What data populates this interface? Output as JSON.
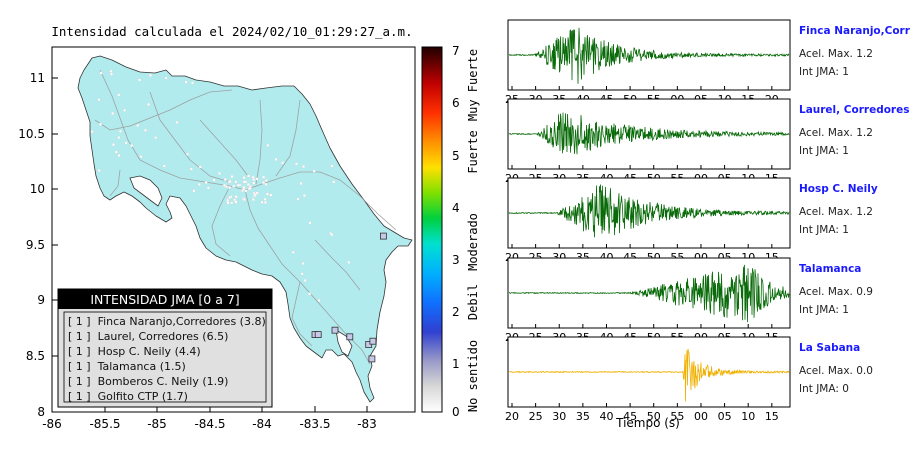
{
  "map": {
    "title": "Intensidad calculada el 2024/02/10_01:29:27_a.m.",
    "x_ticks": [
      "-86",
      "-85.5",
      "-85",
      "-84.5",
      "-84",
      "-83.5",
      "-83"
    ],
    "y_ticks": [
      "11",
      "10.5",
      "10",
      "9.5",
      "9",
      "8.5",
      "8"
    ],
    "land_color": "#b2ebee",
    "station_markers": [
      {
        "name": "Finca Naranjo,Corredores",
        "lon": -82.99,
        "lat": 8.61
      },
      {
        "name": "Laurel, Corredores",
        "lon": -82.96,
        "lat": 8.48
      },
      {
        "name": "Hosp C. Neily",
        "lon": -82.95,
        "lat": 8.64
      },
      {
        "name": "Talamanca",
        "lon": -82.85,
        "lat": 9.59
      },
      {
        "name": "Bomberos C. Neily",
        "lon": -83.17,
        "lat": 8.68
      },
      {
        "name": "Golfito CTP",
        "lon": -83.31,
        "lat": 8.74
      },
      {
        "name": "",
        "lon": -83.5,
        "lat": 8.7
      },
      {
        "name": "",
        "lon": -83.47,
        "lat": 8.7
      }
    ]
  },
  "legend": {
    "title": "INTENSIDAD JMA [0 a 7]",
    "items": [
      "[ 1 ]  Finca Naranjo,Corredores (3.8)",
      "[ 1 ]  Laurel, Corredores (6.5)",
      "[ 1 ]  Hosp C. Neily (4.4)",
      "[ 1 ]  Talamanca (1.5)",
      "[ 1 ]  Bomberos C. Neily (1.9)",
      "[ 1 ]  Golfito CTP (1.7)"
    ]
  },
  "colorbar": {
    "ticks": [
      "7",
      "6",
      "5",
      "4",
      "3",
      "2",
      "1",
      "0"
    ],
    "labels": [
      "Muy Fuerte",
      "Fuerte",
      "Moderado",
      "Debil",
      "No sentido"
    ]
  },
  "waveforms": {
    "xlabel": "Tiempo (s)",
    "panels": [
      {
        "station": "Finca Naranjo,Corredor",
        "accel": "Acel. Max. 1.2",
        "jma": "Int JMA: 1",
        "color": "#0a6b0a",
        "ticks": [
          "25",
          "30",
          "35",
          "40",
          "45",
          "50",
          "55",
          "00",
          "05",
          "10",
          "15",
          "20"
        ],
        "tick_start": 25,
        "onset": 0.09,
        "peak": 0.24,
        "amp": 0.95,
        "decay": 0.13
      },
      {
        "station": "Laurel, Corredores",
        "accel": "Acel. Max. 1.2",
        "jma": "Int JMA: 1",
        "color": "#0a6b0a",
        "ticks": [
          "20",
          "25",
          "30",
          "35",
          "40",
          "45",
          "50",
          "55",
          "00",
          "05",
          "10",
          "15"
        ],
        "tick_start": 20,
        "onset": 0.1,
        "peak": 0.2,
        "amp": 0.8,
        "decay": 0.2
      },
      {
        "station": "Hosp C. Neily",
        "accel": "Acel. Max. 1.2",
        "jma": "Int JMA: 1",
        "color": "#0a6b0a",
        "ticks": [
          "20",
          "25",
          "30",
          "35",
          "40",
          "45",
          "50",
          "55",
          "00",
          "05",
          "10",
          "15"
        ],
        "tick_start": 20,
        "onset": 0.17,
        "peak": 0.33,
        "amp": 0.95,
        "decay": 0.16
      },
      {
        "station": "Talamanca",
        "accel": "Acel. Max. 0.9",
        "jma": "Int JMA: 1",
        "color": "#0a6b0a",
        "ticks": [
          "20",
          "25",
          "30",
          "35",
          "40",
          "45",
          "50",
          "55",
          "00",
          "05",
          "10",
          "15"
        ],
        "tick_start": 20,
        "onset": 0.43,
        "peak": 0.86,
        "amp": 0.95,
        "decay": 0.07
      },
      {
        "station": "La Sabana",
        "accel": "Acel. Max. 0.0",
        "jma": "Int JMA: 0",
        "color": "#f0b000",
        "ticks": [
          "20",
          "25",
          "30",
          "35",
          "40",
          "45",
          "50",
          "55",
          "00",
          "05",
          "10",
          "15"
        ],
        "tick_start": 20,
        "onset": 0.62,
        "peak": 0.63,
        "amp": 0.95,
        "decay": 0.05
      }
    ]
  },
  "chart_data": [
    {
      "type": "scatter",
      "title": "Intensidad calculada el 2024/02/10_01:29:27_a.m.",
      "xlabel": "",
      "ylabel": "",
      "xlim": [
        -86,
        -82.6
      ],
      "ylim": [
        8,
        11.3
      ],
      "grid": false,
      "colorbar": {
        "range": [
          0,
          7
        ]
      }
    },
    {
      "type": "line",
      "title": "",
      "xlabel": "Tiempo (s)",
      "series_names": [
        "Finca Naranjo,Corredor",
        "Laurel, Corredores",
        "Hosp C. Neily",
        "Talamanca",
        "La Sabana"
      ],
      "accel_max": [
        1.2,
        1.2,
        1.2,
        0.9,
        0.0
      ],
      "int_jma": [
        1,
        1,
        1,
        1,
        0
      ]
    }
  ]
}
